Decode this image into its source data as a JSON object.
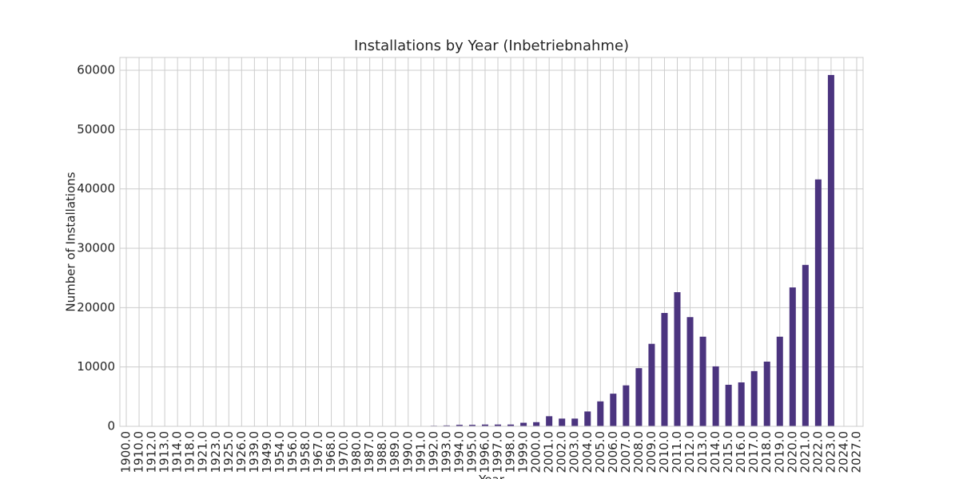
{
  "chart_data": {
    "type": "bar",
    "title": "Installations by Year (Inbetriebnahme)",
    "x_label": "Year",
    "y_label": "Number of Installations",
    "categories": [
      "1900.0",
      "1910.0",
      "1912.0",
      "1913.0",
      "1914.0",
      "1918.0",
      "1921.0",
      "1923.0",
      "1925.0",
      "1926.0",
      "1939.0",
      "1949.0",
      "1954.0",
      "1956.0",
      "1958.0",
      "1967.0",
      "1968.0",
      "1970.0",
      "1980.0",
      "1987.0",
      "1988.0",
      "1989.0",
      "1990.0",
      "1991.0",
      "1992.0",
      "1993.0",
      "1994.0",
      "1995.0",
      "1996.0",
      "1997.0",
      "1998.0",
      "1999.0",
      "2000.0",
      "2001.0",
      "2002.0",
      "2003.0",
      "2004.0",
      "2005.0",
      "2006.0",
      "2007.0",
      "2008.0",
      "2009.0",
      "2010.0",
      "2011.0",
      "2012.0",
      "2013.0",
      "2014.0",
      "2015.0",
      "2016.0",
      "2017.0",
      "2018.0",
      "2019.0",
      "2020.0",
      "2021.0",
      "2022.0",
      "2023.0",
      "2024.0",
      "2027.0"
    ],
    "values": [
      1,
      1,
      1,
      1,
      1,
      1,
      1,
      1,
      1,
      1,
      1,
      1,
      1,
      1,
      1,
      1,
      1,
      1,
      1,
      1,
      1,
      1,
      1,
      1,
      100,
      150,
      250,
      250,
      300,
      300,
      300,
      600,
      700,
      1700,
      1300,
      1300,
      2500,
      4200,
      5500,
      6900,
      9800,
      13900,
      19100,
      22600,
      18400,
      15100,
      10100,
      7000,
      7400,
      9300,
      10900,
      15100,
      23400,
      27200,
      41600,
      59200,
      50,
      1
    ],
    "color": "#4b347f",
    "ylim": [
      0,
      62150
    ],
    "yticks": [
      0,
      10000,
      20000,
      30000,
      40000,
      50000,
      60000
    ],
    "grid": true
  }
}
